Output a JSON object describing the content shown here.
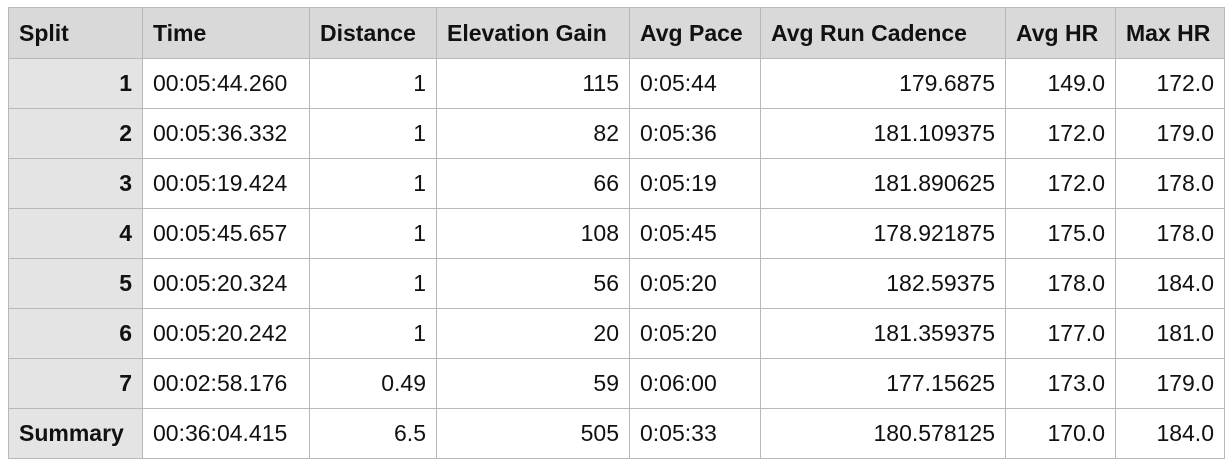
{
  "table": {
    "headers": [
      "Split",
      "Time",
      "Distance",
      "Elevation Gain",
      "Avg Pace",
      "Avg Run Cadence",
      "Avg HR",
      "Max HR"
    ],
    "rows": [
      [
        "1",
        "00:05:44.260",
        "1",
        "115",
        "0:05:44",
        "179.6875",
        "149.0",
        "172.0"
      ],
      [
        "2",
        "00:05:36.332",
        "1",
        "82",
        "0:05:36",
        "181.109375",
        "172.0",
        "179.0"
      ],
      [
        "3",
        "00:05:19.424",
        "1",
        "66",
        "0:05:19",
        "181.890625",
        "172.0",
        "178.0"
      ],
      [
        "4",
        "00:05:45.657",
        "1",
        "108",
        "0:05:45",
        "178.921875",
        "175.0",
        "178.0"
      ],
      [
        "5",
        "00:05:20.324",
        "1",
        "56",
        "0:05:20",
        "182.59375",
        "178.0",
        "184.0"
      ],
      [
        "6",
        "00:05:20.242",
        "1",
        "20",
        "0:05:20",
        "181.359375",
        "177.0",
        "181.0"
      ],
      [
        "7",
        "00:02:58.176",
        "0.49",
        "59",
        "0:06:00",
        "177.15625",
        "173.0",
        "179.0"
      ],
      [
        "Summary",
        "00:36:04.415",
        "6.5",
        "505",
        "0:05:33",
        "180.578125",
        "170.0",
        "184.0"
      ]
    ]
  },
  "colors": {
    "header_bg": "#d9d9d9",
    "rowhead_bg": "#e4e4e4",
    "grid": "#b8b8b8",
    "text": "#111111"
  }
}
